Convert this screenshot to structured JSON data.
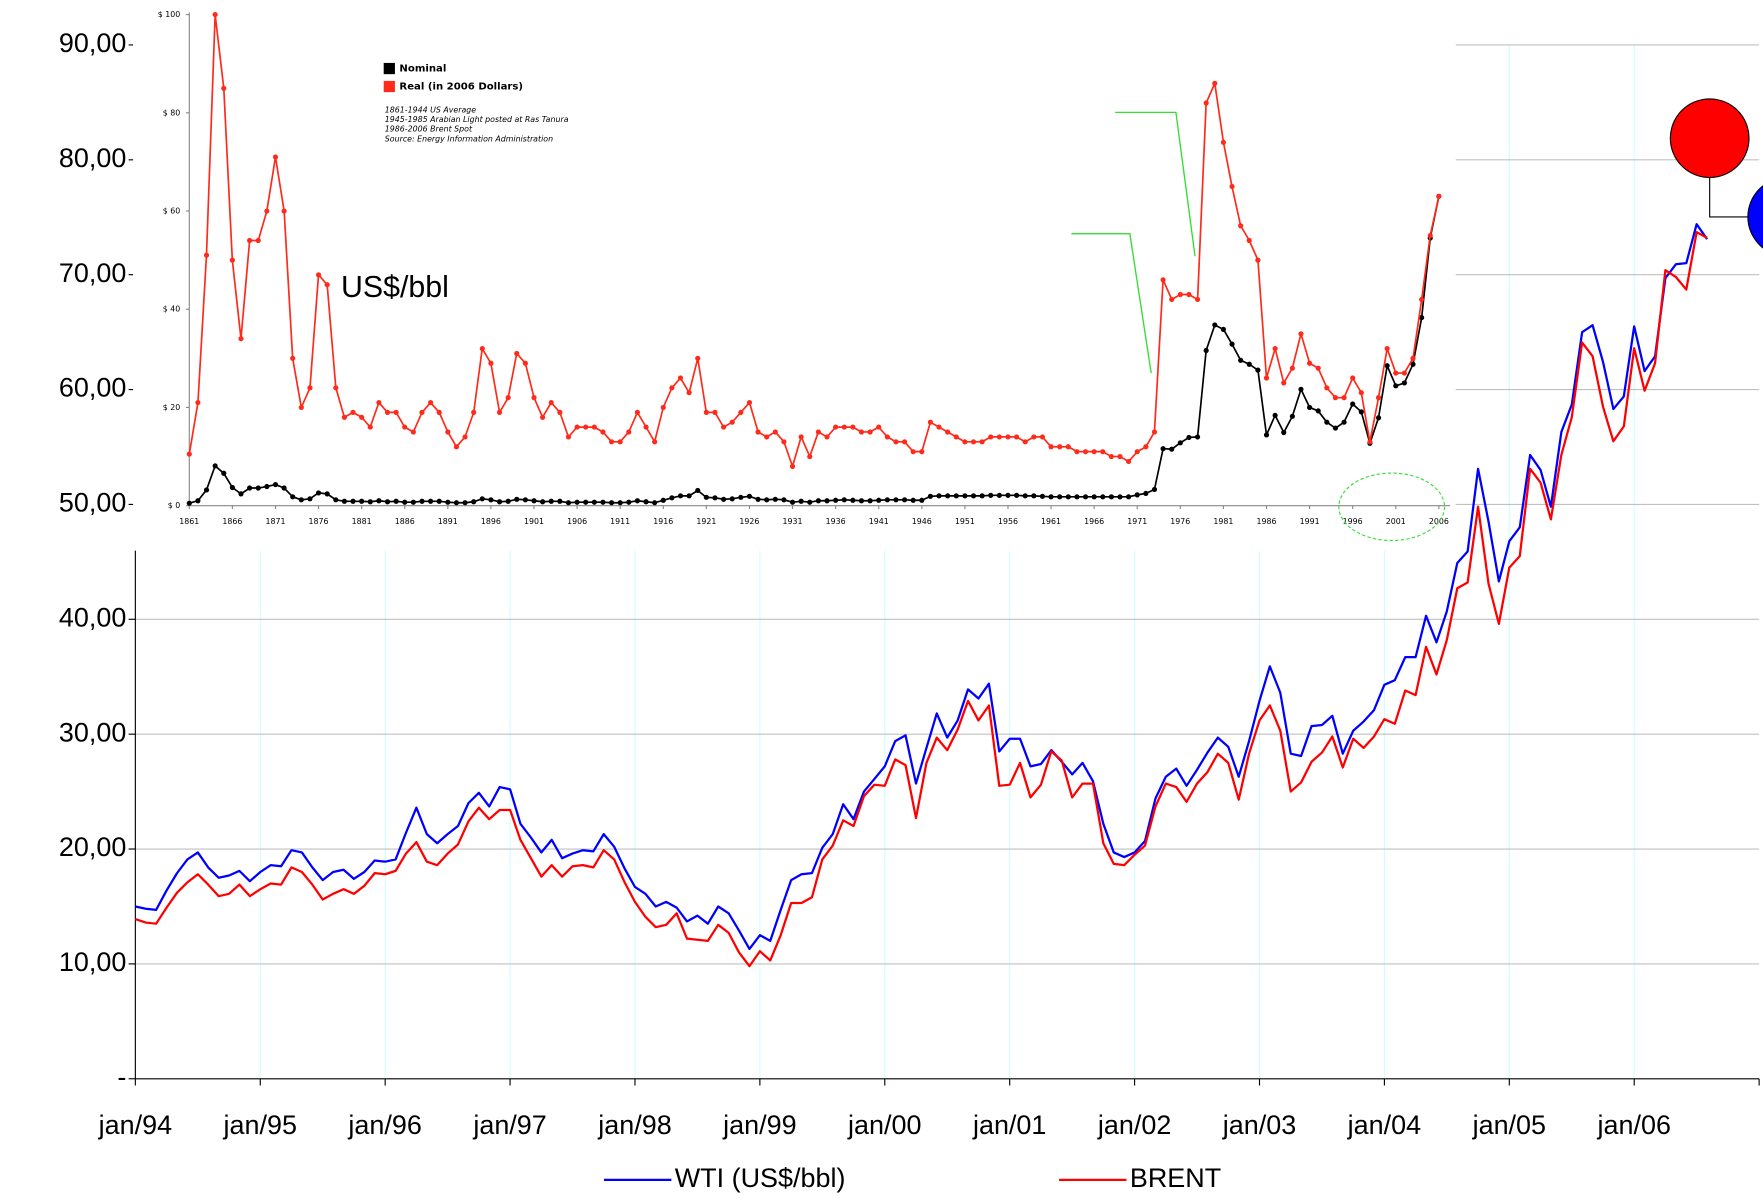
{
  "chart_data": [
    {
      "type": "line",
      "x": [
        "1994-01",
        "1994-02",
        "1994-03",
        "1994-04",
        "1994-05",
        "1994-06",
        "1994-07",
        "1994-08",
        "1994-09",
        "1994-10",
        "1994-11",
        "1994-12",
        "1995-01",
        "1995-02",
        "1995-03",
        "1995-04",
        "1995-05",
        "1995-06",
        "1995-07",
        "1995-08",
        "1995-09",
        "1995-10",
        "1995-11",
        "1995-12",
        "1996-01",
        "1996-02",
        "1996-03",
        "1996-04",
        "1996-05",
        "1996-06",
        "1996-07",
        "1996-08",
        "1996-09",
        "1996-10",
        "1996-11",
        "1996-12",
        "1997-01",
        "1997-02",
        "1997-03",
        "1997-04",
        "1997-05",
        "1997-06",
        "1997-07",
        "1997-08",
        "1997-09",
        "1997-10",
        "1997-11",
        "1997-12",
        "1998-01",
        "1998-02",
        "1998-03",
        "1998-04",
        "1998-05",
        "1998-06",
        "1998-07",
        "1998-08",
        "1998-09",
        "1998-10",
        "1998-11",
        "1998-12",
        "1999-01",
        "1999-02",
        "1999-03",
        "1999-04",
        "1999-05",
        "1999-06",
        "1999-07",
        "1999-08",
        "1999-09",
        "1999-10",
        "1999-11",
        "1999-12",
        "2000-01",
        "2000-02",
        "2000-03",
        "2000-04",
        "2000-05",
        "2000-06",
        "2000-07",
        "2000-08",
        "2000-09",
        "2000-10",
        "2000-11",
        "2000-12",
        "2001-01",
        "2001-02",
        "2001-03",
        "2001-04",
        "2001-05",
        "2001-06",
        "2001-07",
        "2001-08",
        "2001-09",
        "2001-10",
        "2001-11",
        "2001-12",
        "2002-01",
        "2002-02",
        "2002-03",
        "2002-04",
        "2002-05",
        "2002-06",
        "2002-07",
        "2002-08",
        "2002-09",
        "2002-10",
        "2002-11",
        "2002-12",
        "2003-01",
        "2003-02",
        "2003-03",
        "2003-04",
        "2003-05",
        "2003-06",
        "2003-07",
        "2003-08",
        "2003-09",
        "2003-10",
        "2003-11",
        "2003-12",
        "2004-01",
        "2004-02",
        "2004-03",
        "2004-04",
        "2004-05",
        "2004-06",
        "2004-07",
        "2004-08",
        "2004-09",
        "2004-10",
        "2004-11",
        "2004-12",
        "2005-01",
        "2005-02",
        "2005-03",
        "2005-04",
        "2005-05",
        "2005-06",
        "2005-07",
        "2005-08",
        "2005-09",
        "2005-10",
        "2005-11",
        "2005-12",
        "2006-01",
        "2006-02",
        "2006-03",
        "2006-04",
        "2006-05",
        "2006-06",
        "2006-07",
        "2006-08"
      ],
      "series": [
        {
          "name": "WTI (US$/bbl)",
          "color": "#0000ff",
          "values": [
            15.0,
            14.8,
            14.7,
            16.4,
            17.9,
            19.1,
            19.7,
            18.4,
            17.5,
            17.7,
            18.1,
            17.2,
            18.0,
            18.6,
            18.5,
            19.9,
            19.7,
            18.4,
            17.3,
            18.0,
            18.2,
            17.4,
            18.0,
            19.0,
            18.9,
            19.1,
            21.4,
            23.6,
            21.3,
            20.5,
            21.3,
            22.0,
            24.0,
            24.9,
            23.7,
            25.4,
            25.2,
            22.2,
            21.0,
            19.7,
            20.8,
            19.2,
            19.6,
            19.9,
            19.8,
            21.3,
            20.2,
            18.3,
            16.7,
            16.1,
            15.0,
            15.4,
            14.9,
            13.7,
            14.2,
            13.5,
            15.0,
            14.4,
            12.9,
            11.3,
            12.5,
            12.0,
            14.7,
            17.3,
            17.8,
            17.9,
            20.1,
            21.3,
            23.9,
            22.6,
            25.0,
            26.1,
            27.2,
            29.4,
            29.9,
            25.7,
            28.8,
            31.8,
            29.7,
            31.2,
            33.9,
            33.1,
            34.4,
            28.5,
            29.6,
            29.6,
            27.2,
            27.4,
            28.6,
            27.6,
            26.5,
            27.5,
            25.9,
            22.2,
            19.7,
            19.3,
            19.7,
            20.7,
            24.4,
            26.3,
            27.0,
            25.5,
            26.9,
            28.4,
            29.7,
            28.9,
            26.3,
            29.4,
            32.9,
            35.9,
            33.6,
            28.3,
            28.1,
            30.7,
            30.8,
            31.6,
            28.3,
            30.3,
            31.1,
            32.1,
            34.3,
            34.7,
            36.7,
            36.7,
            40.3,
            38.0,
            40.7,
            44.9,
            45.9,
            53.1,
            48.5,
            43.3,
            46.8,
            48.0,
            54.3,
            53.0,
            49.8,
            56.3,
            58.7,
            65.0,
            65.6,
            62.4,
            58.3,
            59.4,
            65.5,
            61.6,
            62.9,
            69.7,
            70.9,
            71.0,
            74.4,
            73.1
          ]
        },
        {
          "name": "BRENT",
          "color": "#ff0000",
          "values": [
            13.9,
            13.6,
            13.5,
            14.9,
            16.2,
            17.1,
            17.8,
            16.9,
            15.9,
            16.1,
            16.9,
            15.9,
            16.5,
            17.0,
            16.9,
            18.4,
            18.0,
            16.9,
            15.6,
            16.1,
            16.5,
            16.1,
            16.8,
            17.9,
            17.8,
            18.1,
            19.6,
            20.6,
            18.9,
            18.6,
            19.6,
            20.4,
            22.4,
            23.6,
            22.6,
            23.4,
            23.4,
            20.8,
            19.2,
            17.6,
            18.6,
            17.6,
            18.5,
            18.6,
            18.4,
            19.9,
            19.1,
            17.1,
            15.4,
            14.1,
            13.2,
            13.4,
            14.4,
            12.2,
            12.1,
            12.0,
            13.4,
            12.7,
            11.0,
            9.8,
            11.1,
            10.3,
            12.5,
            15.3,
            15.3,
            15.8,
            19.1,
            20.3,
            22.5,
            22.0,
            24.6,
            25.6,
            25.5,
            27.8,
            27.3,
            22.7,
            27.5,
            29.7,
            28.6,
            30.4,
            32.9,
            31.2,
            32.5,
            25.5,
            25.6,
            27.5,
            24.5,
            25.6,
            28.5,
            27.7,
            24.5,
            25.7,
            25.7,
            20.5,
            18.7,
            18.6,
            19.5,
            20.3,
            23.7,
            25.7,
            25.4,
            24.1,
            25.7,
            26.7,
            28.3,
            27.5,
            24.3,
            28.3,
            31.2,
            32.5,
            30.3,
            25.0,
            25.8,
            27.6,
            28.4,
            29.8,
            27.1,
            29.6,
            28.8,
            29.8,
            31.3,
            30.9,
            33.8,
            33.4,
            37.6,
            35.2,
            38.2,
            42.7,
            43.2,
            49.8,
            43.1,
            39.6,
            44.5,
            45.5,
            53.1,
            51.9,
            48.7,
            54.3,
            57.6,
            64.1,
            62.9,
            58.5,
            55.5,
            56.8,
            63.6,
            59.9,
            62.3,
            70.4,
            69.8,
            68.7,
            73.7,
            73.2
          ]
        }
      ],
      "xlim": [
        "1994-01",
        "2007-01"
      ],
      "xticks": [
        {
          "value": "1994-01",
          "label": "jan/94"
        },
        {
          "value": "1995-01",
          "label": "jan/95"
        },
        {
          "value": "1996-01",
          "label": "jan/96"
        },
        {
          "value": "1997-01",
          "label": "jan/97"
        },
        {
          "value": "1998-01",
          "label": "jan/98"
        },
        {
          "value": "1999-01",
          "label": "jan/99"
        },
        {
          "value": "2000-01",
          "label": "jan/00"
        },
        {
          "value": "2001-01",
          "label": "jan/01"
        },
        {
          "value": "2002-01",
          "label": "jan/02"
        },
        {
          "value": "2003-01",
          "label": "jan/03"
        },
        {
          "value": "2004-01",
          "label": "jan/04"
        },
        {
          "value": "2005-01",
          "label": "jan/05"
        },
        {
          "value": "2006-01",
          "label": "jan/06"
        }
      ],
      "ylim": [
        0,
        90
      ],
      "yticks": [
        {
          "value": 0,
          "label": "-"
        },
        {
          "value": 10,
          "label": "10,00"
        },
        {
          "value": 20,
          "label": "20,00"
        },
        {
          "value": 30,
          "label": "30,00"
        },
        {
          "value": 40,
          "label": "40,00"
        },
        {
          "value": 50,
          "label": "50,00"
        },
        {
          "value": 60,
          "label": "60,00"
        },
        {
          "value": 70,
          "label": "70,00"
        },
        {
          "value": 80,
          "label": "80,00"
        },
        {
          "value": 90,
          "label": "90,00"
        }
      ],
      "grid": true,
      "legend": "bottom",
      "annotations": [
        {
          "text": "US$/bbl"
        }
      ]
    },
    {
      "type": "line",
      "x": [
        1861,
        1862,
        1863,
        1864,
        1865,
        1866,
        1867,
        1868,
        1869,
        1870,
        1871,
        1872,
        1873,
        1874,
        1875,
        1876,
        1877,
        1878,
        1879,
        1880,
        1881,
        1882,
        1883,
        1884,
        1885,
        1886,
        1887,
        1888,
        1889,
        1890,
        1891,
        1892,
        1893,
        1894,
        1895,
        1896,
        1897,
        1898,
        1899,
        1900,
        1901,
        1902,
        1903,
        1904,
        1905,
        1906,
        1907,
        1908,
        1909,
        1910,
        1911,
        1912,
        1913,
        1914,
        1915,
        1916,
        1917,
        1918,
        1919,
        1920,
        1921,
        1922,
        1923,
        1924,
        1925,
        1926,
        1927,
        1928,
        1929,
        1930,
        1931,
        1932,
        1933,
        1934,
        1935,
        1936,
        1937,
        1938,
        1939,
        1940,
        1941,
        1942,
        1943,
        1944,
        1945,
        1946,
        1947,
        1948,
        1949,
        1950,
        1951,
        1952,
        1953,
        1954,
        1955,
        1956,
        1957,
        1958,
        1959,
        1960,
        1961,
        1962,
        1963,
        1964,
        1965,
        1966,
        1967,
        1968,
        1969,
        1970,
        1971,
        1972,
        1973,
        1974,
        1975,
        1976,
        1977,
        1978,
        1979,
        1980,
        1981,
        1982,
        1983,
        1984,
        1985,
        1986,
        1987,
        1988,
        1989,
        1990,
        1991,
        1992,
        1993,
        1994,
        1995,
        1996,
        1997,
        1998,
        1999,
        2000,
        2001,
        2002,
        2003,
        2004,
        2005,
        2006
      ],
      "series": [
        {
          "name": "Nominal",
          "color": "#000000",
          "values": [
            0.5,
            1.0,
            3.2,
            8.1,
            6.6,
            3.7,
            2.4,
            3.6,
            3.6,
            3.9,
            4.3,
            3.6,
            1.8,
            1.2,
            1.4,
            2.6,
            2.4,
            1.2,
            0.9,
            0.9,
            0.9,
            0.8,
            1.0,
            0.8,
            0.9,
            0.7,
            0.7,
            0.9,
            0.9,
            0.9,
            0.7,
            0.6,
            0.6,
            0.8,
            1.4,
            1.2,
            0.8,
            0.9,
            1.3,
            1.2,
            1.0,
            0.8,
            0.9,
            0.9,
            0.6,
            0.7,
            0.7,
            0.7,
            0.7,
            0.6,
            0.6,
            0.7,
            1.0,
            0.8,
            0.6,
            1.1,
            1.6,
            2.0,
            2.0,
            3.1,
            1.7,
            1.6,
            1.3,
            1.4,
            1.7,
            1.9,
            1.3,
            1.2,
            1.3,
            1.2,
            0.7,
            0.9,
            0.7,
            1.0,
            1.0,
            1.1,
            1.2,
            1.1,
            1.0,
            1.0,
            1.1,
            1.2,
            1.2,
            1.2,
            1.1,
            1.1,
            1.9,
            2.0,
            2.0,
            2.0,
            2.0,
            2.0,
            2.0,
            2.1,
            2.1,
            2.1,
            2.1,
            2.0,
            2.0,
            1.9,
            1.8,
            1.8,
            1.8,
            1.8,
            1.8,
            1.8,
            1.8,
            1.8,
            1.8,
            1.8,
            2.2,
            2.5,
            3.3,
            11.6,
            11.5,
            12.8,
            13.9,
            14.0,
            31.6,
            36.8,
            35.9,
            32.9,
            29.6,
            28.8,
            27.6,
            14.4,
            18.4,
            14.9,
            18.2,
            23.7,
            20.0,
            19.3,
            17.0,
            15.8,
            17.0,
            20.7,
            19.1,
            12.7,
            17.9,
            28.5,
            24.4,
            25.0,
            28.8,
            38.3,
            54.5,
            63.0
          ]
        },
        {
          "name": "Real (in 2006 Dollars)",
          "color": "#ff2a1a",
          "values": [
            10.5,
            21,
            51,
            100,
            85,
            50,
            34,
            54,
            54,
            60,
            71,
            60,
            30,
            20,
            24,
            47,
            45,
            24,
            18,
            19,
            18,
            16,
            21,
            19,
            19,
            16,
            15,
            19,
            21,
            19,
            15,
            12,
            14,
            19,
            32,
            29,
            19,
            22,
            31,
            29,
            22,
            18,
            21,
            19,
            14,
            16,
            16,
            16,
            15,
            13,
            13,
            15,
            19,
            16,
            13,
            20,
            24,
            26,
            23,
            30,
            19,
            19,
            16,
            17,
            19,
            21,
            15,
            14,
            15,
            13,
            8,
            14,
            10,
            15,
            14,
            16,
            16,
            16,
            15,
            15,
            16,
            14,
            13,
            13,
            11,
            11,
            17,
            16,
            15,
            14,
            13,
            13,
            13,
            14,
            14,
            14,
            14,
            13,
            14,
            14,
            12,
            12,
            12,
            11,
            11,
            11,
            11,
            10,
            10,
            9,
            11,
            12,
            15,
            46,
            42,
            43,
            43,
            42,
            82,
            86,
            74,
            65,
            57,
            54,
            50,
            26,
            32,
            25,
            28,
            35,
            29,
            28,
            24,
            22,
            22,
            26,
            23,
            13,
            22,
            32,
            27,
            27,
            30,
            42,
            55,
            63
          ]
        }
      ],
      "xlim": [
        1861,
        2006
      ],
      "xticks": [
        1861,
        1866,
        1871,
        1876,
        1881,
        1886,
        1891,
        1896,
        1901,
        1906,
        1911,
        1916,
        1921,
        1926,
        1931,
        1936,
        1941,
        1946,
        1951,
        1956,
        1961,
        1966,
        1971,
        1976,
        1981,
        1986,
        1991,
        1996,
        2001,
        2006
      ],
      "ylim": [
        0,
        100
      ],
      "yticks": [
        {
          "value": 0,
          "label": "$ 0"
        },
        {
          "value": 20,
          "label": "$ 20"
        },
        {
          "value": 40,
          "label": "$ 40"
        },
        {
          "value": 60,
          "label": "$ 60"
        },
        {
          "value": 80,
          "label": "$ 80"
        },
        {
          "value": 100,
          "label": "$ 100"
        }
      ],
      "markers": true,
      "legend": "top-left",
      "notes": [
        "1861-1944 US Average",
        "1945-1985 Arabian Light posted at Ras Tanura",
        "1986-2006 Brent Spot",
        "Source: Energy Information Administration"
      ]
    }
  ]
}
